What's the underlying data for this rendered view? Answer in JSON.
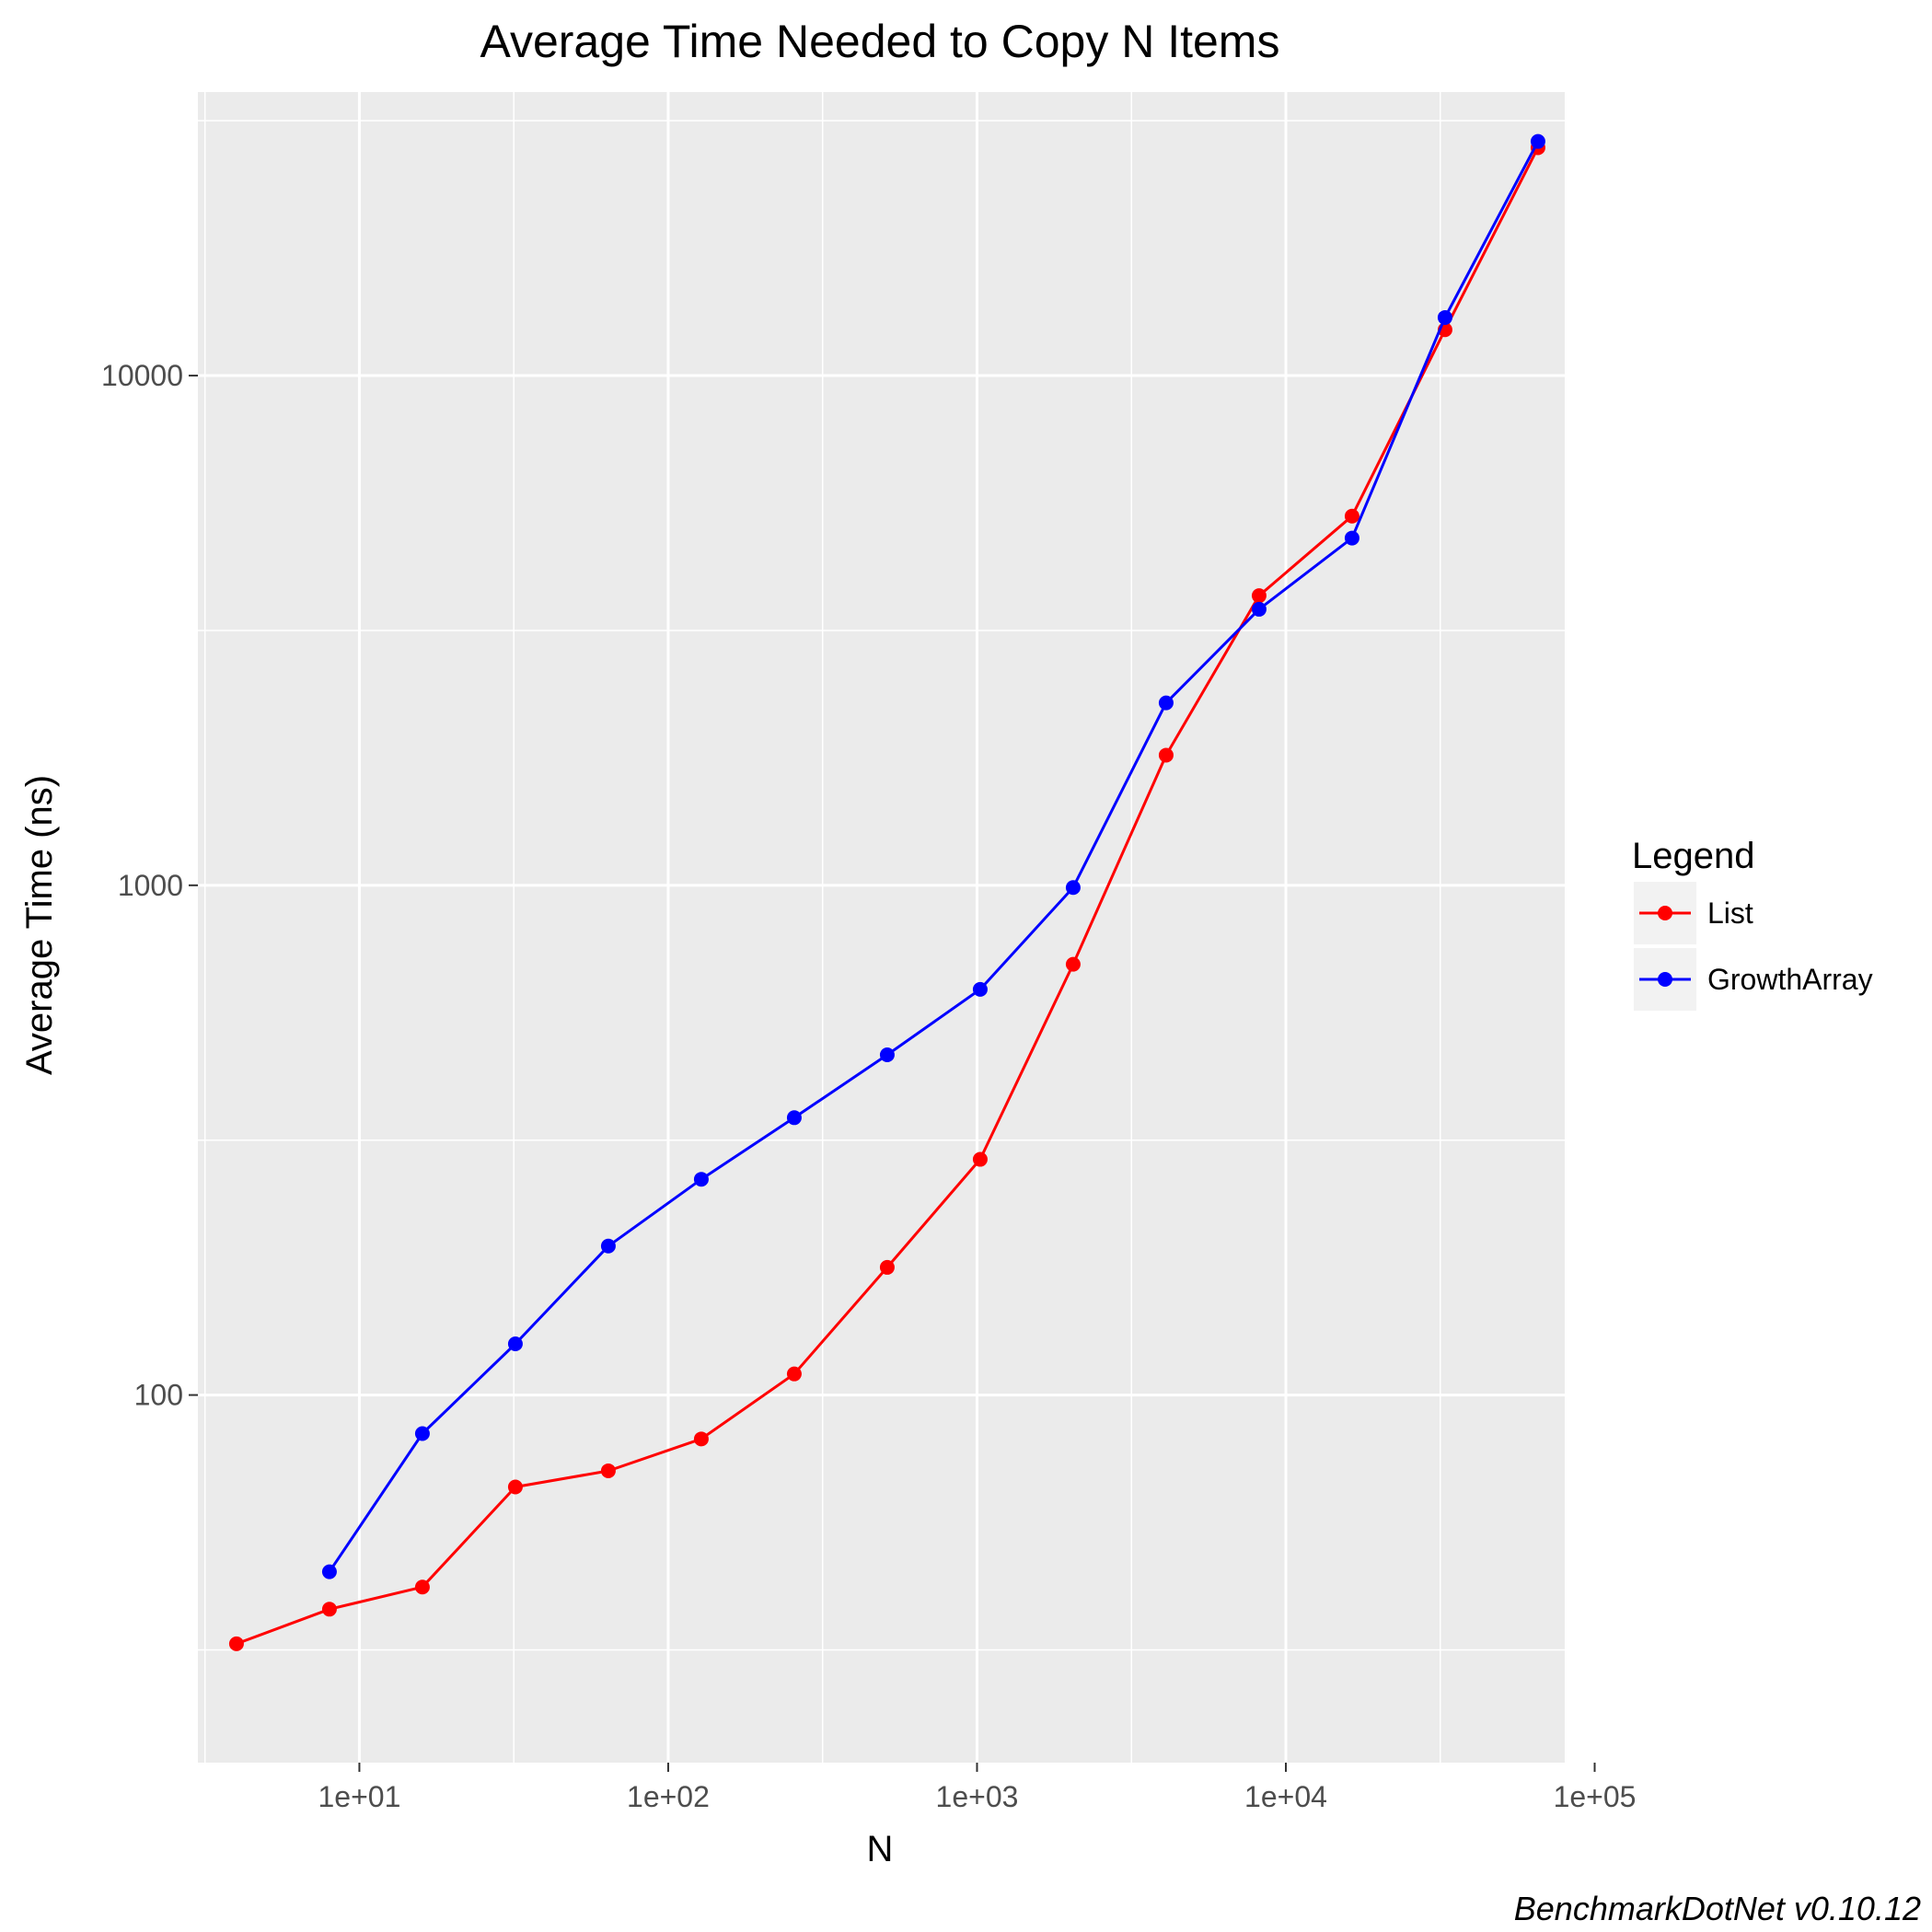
{
  "chart_data": {
    "type": "line",
    "title": "Average Time Needed to Copy N Items",
    "xlabel": "N",
    "ylabel": "Average Time (ns)",
    "x_scale": "log10",
    "y_scale": "log10",
    "xlim": [
      3,
      80000
    ],
    "ylim": [
      19,
      36000
    ],
    "x_ticks": [
      {
        "value": 10,
        "label": "1e+01"
      },
      {
        "value": 100,
        "label": "1e+02"
      },
      {
        "value": 1000,
        "label": "1e+03"
      },
      {
        "value": 10000,
        "label": "1e+04"
      },
      {
        "value": 100000,
        "label": "1e+05"
      }
    ],
    "y_ticks": [
      {
        "value": 100,
        "label": "100"
      },
      {
        "value": 1000,
        "label": "1000"
      },
      {
        "value": 10000,
        "label": "10000"
      }
    ],
    "grid": true,
    "legend": {
      "title": "Legend",
      "position": "right"
    },
    "series": [
      {
        "name": "List",
        "color": "#ff0000",
        "x": [
          4,
          8,
          16,
          32,
          64,
          128,
          256,
          512,
          1024,
          2048,
          4096,
          8192,
          16384,
          32768,
          65536
        ],
        "y": [
          32.5,
          38,
          42,
          66,
          71,
          82,
          110,
          178,
          290,
          700,
          1800,
          3700,
          5300,
          12300,
          28000
        ]
      },
      {
        "name": "GrowthArray",
        "color": "#0000ff",
        "x": [
          8,
          16,
          32,
          64,
          128,
          256,
          512,
          1024,
          2048,
          4096,
          8192,
          16384,
          32768,
          65536
        ],
        "y": [
          45,
          84,
          126,
          196,
          265,
          350,
          465,
          625,
          990,
          2280,
          3480,
          4800,
          13000,
          28800
        ]
      }
    ]
  },
  "caption": "BenchmarkDotNet v0.10.12"
}
